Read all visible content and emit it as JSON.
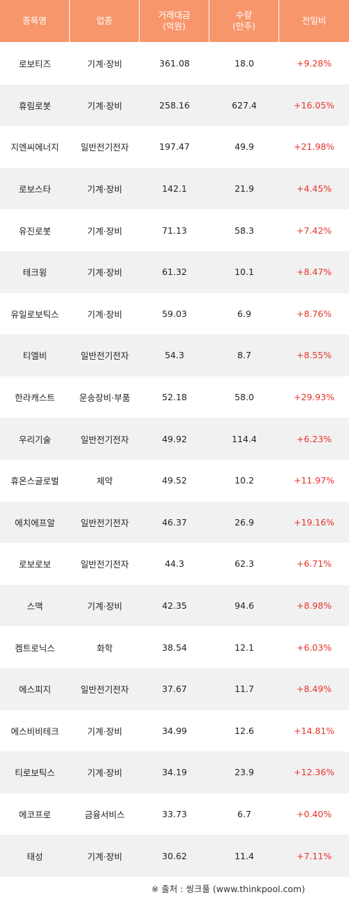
{
  "header": {
    "col_name": "종목명",
    "col_sector": "업종",
    "col_amount": "거래대금\n(억원)",
    "col_volume": "수량\n(만주)",
    "col_change": "전일비"
  },
  "rows": [
    {
      "name": "로보티즈",
      "sector": "기계·장비",
      "amount": "361.08",
      "volume": "18.0",
      "change": "+9.28%"
    },
    {
      "name": "휴림로봇",
      "sector": "기계·장비",
      "amount": "258.16",
      "volume": "627.4",
      "change": "+16.05%"
    },
    {
      "name": "지엔씨에너지",
      "sector": "일반전기전자",
      "amount": "197.47",
      "volume": "49.9",
      "change": "+21.98%"
    },
    {
      "name": "로보스타",
      "sector": "기계·장비",
      "amount": "142.1",
      "volume": "21.9",
      "change": "+4.45%"
    },
    {
      "name": "유진로봇",
      "sector": "기계·장비",
      "amount": "71.13",
      "volume": "58.3",
      "change": "+7.42%"
    },
    {
      "name": "테크윙",
      "sector": "기계·장비",
      "amount": "61.32",
      "volume": "10.1",
      "change": "+8.47%"
    },
    {
      "name": "유일로보틱스",
      "sector": "기계·장비",
      "amount": "59.03",
      "volume": "6.9",
      "change": "+8.76%"
    },
    {
      "name": "티엘비",
      "sector": "일반전기전자",
      "amount": "54.3",
      "volume": "8.7",
      "change": "+8.55%"
    },
    {
      "name": "한라캐스트",
      "sector": "운송장비·부품",
      "amount": "52.18",
      "volume": "58.0",
      "change": "+29.93%"
    },
    {
      "name": "우리기술",
      "sector": "일반전기전자",
      "amount": "49.92",
      "volume": "114.4",
      "change": "+6.23%"
    },
    {
      "name": "휴온스글로벌",
      "sector": "제약",
      "amount": "49.52",
      "volume": "10.2",
      "change": "+11.97%"
    },
    {
      "name": "에치에프알",
      "sector": "일반전기전자",
      "amount": "46.37",
      "volume": "26.9",
      "change": "+19.16%"
    },
    {
      "name": "로보로보",
      "sector": "일반전기전자",
      "amount": "44.3",
      "volume": "62.3",
      "change": "+6.71%"
    },
    {
      "name": "스맥",
      "sector": "기계·장비",
      "amount": "42.35",
      "volume": "94.6",
      "change": "+8.98%"
    },
    {
      "name": "켐트로닉스",
      "sector": "화학",
      "amount": "38.54",
      "volume": "12.1",
      "change": "+6.03%"
    },
    {
      "name": "에스피지",
      "sector": "일반전기전자",
      "amount": "37.67",
      "volume": "11.7",
      "change": "+8.49%"
    },
    {
      "name": "에스비비테크",
      "sector": "기계·장비",
      "amount": "34.99",
      "volume": "12.6",
      "change": "+14.81%"
    },
    {
      "name": "티로보틱스",
      "sector": "기계·장비",
      "amount": "34.19",
      "volume": "23.9",
      "change": "+12.36%"
    },
    {
      "name": "에코프로",
      "sector": "금융서비스",
      "amount": "33.73",
      "volume": "6.7",
      "change": "+0.40%"
    },
    {
      "name": "태성",
      "sector": "기계·장비",
      "amount": "30.62",
      "volume": "11.4",
      "change": "+7.11%"
    }
  ],
  "footer": {
    "source": "※ 출처 : 씽크풀 (www.thinkpool.com)"
  },
  "colors": {
    "header_bg": "#f7966b",
    "header_text": "#ffffff",
    "row_alt_bg": "#f1f1f1",
    "change_text": "#e8322a"
  }
}
